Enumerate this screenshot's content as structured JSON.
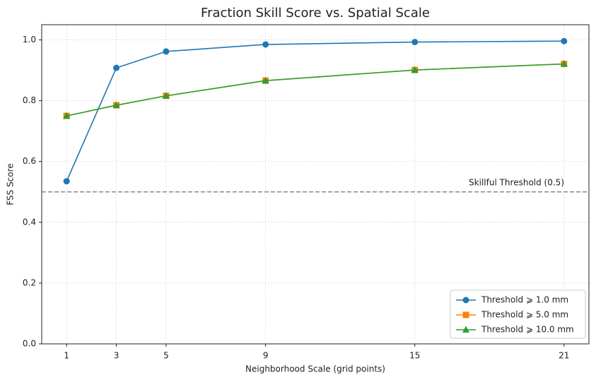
{
  "chart_data": {
    "type": "line",
    "title": "Fraction Skill Score vs. Spatial Scale",
    "x_label": "Neighborhood Scale (grid points)",
    "y_label": "FSS Score",
    "x": [
      1,
      3,
      5,
      9,
      15,
      21
    ],
    "series": [
      {
        "name": "Threshold ⩾ 1.0 mm",
        "color": "#1f77b4",
        "marker": "circle",
        "values": [
          0.535,
          0.908,
          0.962,
          0.985,
          0.993,
          0.996
        ]
      },
      {
        "name": "Threshold ⩾ 5.0 mm",
        "color": "#ff7f0e",
        "marker": "square",
        "values": [
          0.75,
          0.785,
          0.816,
          0.866,
          0.901,
          0.921
        ]
      },
      {
        "name": "Threshold ⩾ 10.0 mm",
        "color": "#2ca02c",
        "marker": "triangle",
        "values": [
          0.75,
          0.785,
          0.816,
          0.866,
          0.901,
          0.921
        ]
      }
    ],
    "threshold": {
      "value": 0.5,
      "label": "Skillful Threshold (0.5)",
      "color": "#888888"
    },
    "xlim": [
      0,
      22
    ],
    "xticks": [
      1,
      3,
      5,
      9,
      15,
      21
    ],
    "ylim": [
      0,
      1.05
    ],
    "yticks": [
      {
        "value": 0,
        "label": "0.0"
      },
      0.2,
      0.4,
      0.6,
      0.8,
      {
        "value": 1,
        "label": "1.0"
      }
    ],
    "grid": true,
    "legend": "lower right"
  }
}
